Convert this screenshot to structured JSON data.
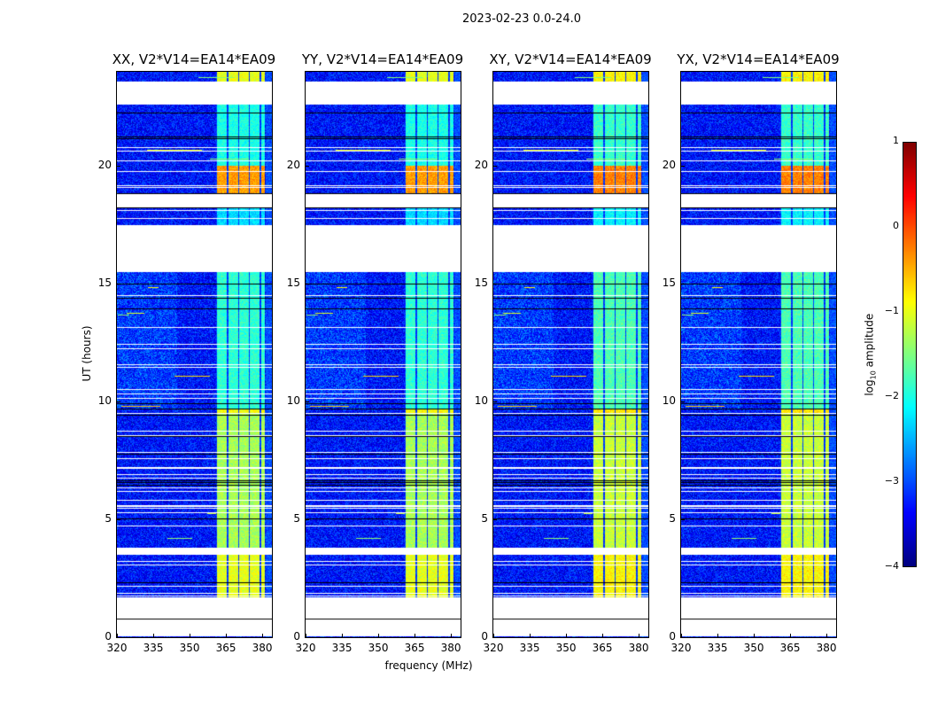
{
  "chart_data": {
    "type": "heatmap",
    "title": "2023-02-23 0.0-24.0",
    "xlabel": "frequency (MHz)",
    "ylabel": "UT (hours)",
    "xlim": [
      320,
      384
    ],
    "ylim": [
      0,
      24
    ],
    "xticks": [
      "320",
      "335",
      "350",
      "365",
      "380"
    ],
    "xtick_values": [
      320,
      335,
      350,
      365,
      380
    ],
    "yticks": [
      "0",
      "5",
      "10",
      "15",
      "20"
    ],
    "ytick_values": [
      0,
      5,
      10,
      15,
      20
    ],
    "panels": [
      {
        "title": "XX, V2*V14=EA14*EA09"
      },
      {
        "title": "YY, V2*V14=EA14*EA09"
      },
      {
        "title": "XY, V2*V14=EA14*EA09"
      },
      {
        "title": "YX, V2*V14=EA14*EA09"
      }
    ],
    "colorbar": {
      "label_prefix": "log",
      "label_sub": "10",
      "label_suffix": " amplitude",
      "range": [
        -4,
        1
      ],
      "ticks": [
        "1",
        "0",
        "−1",
        "−2",
        "−3",
        "−4"
      ],
      "tick_values": [
        1,
        0,
        -1,
        -2,
        -3,
        -4
      ],
      "colormap": "jet"
    },
    "background_log_amplitude": -3.3,
    "bright_band_mhz": [
      361,
      381
    ],
    "flagged_hours": [
      [
        0.05,
        1.7
      ],
      [
        3.5,
        3.8
      ],
      [
        15.5,
        17.5
      ],
      [
        18.2,
        18.8
      ],
      [
        22.6,
        23.6
      ]
    ],
    "band_levels": [
      {
        "hours": [
          1.7,
          3.5
        ],
        "value": -1.0
      },
      {
        "hours": [
          3.8,
          9.5
        ],
        "value": -1.3
      },
      {
        "hours": [
          9.5,
          9.7
        ],
        "value": -0.9
      },
      {
        "hours": [
          9.7,
          15.5
        ],
        "value": -1.9
      },
      {
        "hours": [
          17.5,
          18.2
        ],
        "value": -2.3
      },
      {
        "hours": [
          18.8,
          20.0
        ],
        "value": -0.4
      },
      {
        "hours": [
          20.0,
          22.6
        ],
        "value": -2.0
      },
      {
        "hours": [
          23.6,
          24.0
        ],
        "value": -1.0
      }
    ]
  }
}
